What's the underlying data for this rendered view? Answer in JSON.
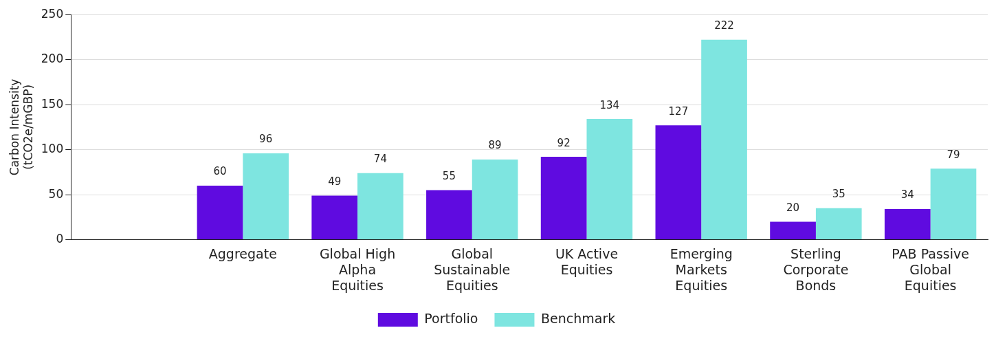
{
  "chart_data": {
    "type": "bar",
    "ylabel": "Carbon Intensity (tCO2e/mGBP)",
    "categories": [
      null,
      "Aggregate",
      "Global High Alpha Equities",
      "Global Sustainable Equities",
      "UK Active Equities",
      "Emerging Markets Equities",
      "Sterling Corporate Bonds",
      "PAB Passive Global Equities"
    ],
    "series": [
      {
        "name": "Portfolio",
        "color": "#5f0be0",
        "values": [
          null,
          60,
          49,
          55,
          92,
          127,
          20,
          34
        ]
      },
      {
        "name": "Benchmark",
        "color": "#7ee5e0",
        "values": [
          null,
          96,
          74,
          89,
          134,
          222,
          35,
          79
        ]
      }
    ],
    "ylim": [
      0,
      250
    ],
    "yticks": [
      0,
      50,
      100,
      150,
      200,
      250
    ],
    "grid": "y",
    "legend": "bottom",
    "data_labels": true
  }
}
